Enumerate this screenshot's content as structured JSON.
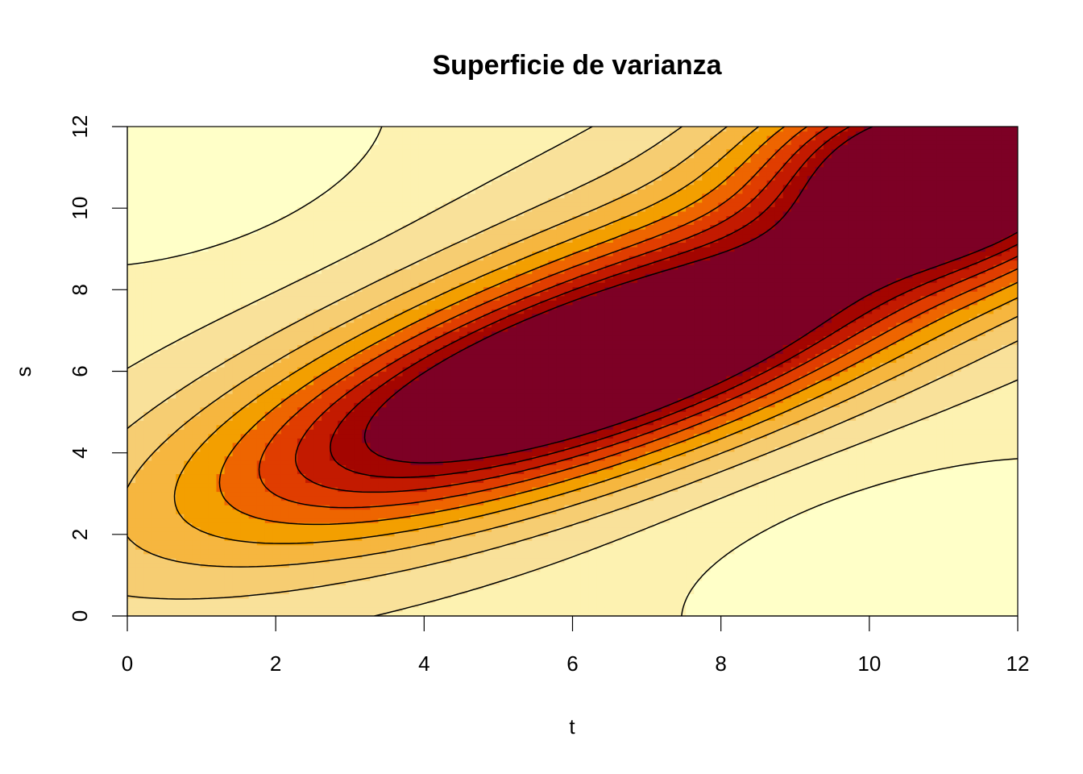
{
  "chart_data": {
    "type": "heatmap",
    "title": "Superficie de varianza",
    "xlabel": "t",
    "ylabel": "s",
    "xlim": [
      0,
      12
    ],
    "ylim": [
      0,
      12
    ],
    "x_ticks": [
      "0",
      "2",
      "4",
      "6",
      "8",
      "10",
      "12"
    ],
    "y_ticks": [
      "0",
      "2",
      "4",
      "6",
      "8",
      "10",
      "12"
    ],
    "palette": [
      "#FFFFC8",
      "#FDF2B1",
      "#F9E19A",
      "#F6CD72",
      "#F6B63F",
      "#F39F00",
      "#EE6500",
      "#E03D00",
      "#C31A00",
      "#A30500",
      "#7D0025"
    ],
    "surface_peaks": [
      {
        "t": 6.2,
        "s": 6.0,
        "level": "max"
      },
      {
        "t": 11.0,
        "s": 11.0,
        "level": "high"
      },
      {
        "t": 0.0,
        "s": 12.0,
        "level": "min"
      },
      {
        "t": 11.5,
        "s": 0.5,
        "level": "min"
      }
    ],
    "contour_lines": true,
    "grid": false,
    "legend": "none"
  }
}
